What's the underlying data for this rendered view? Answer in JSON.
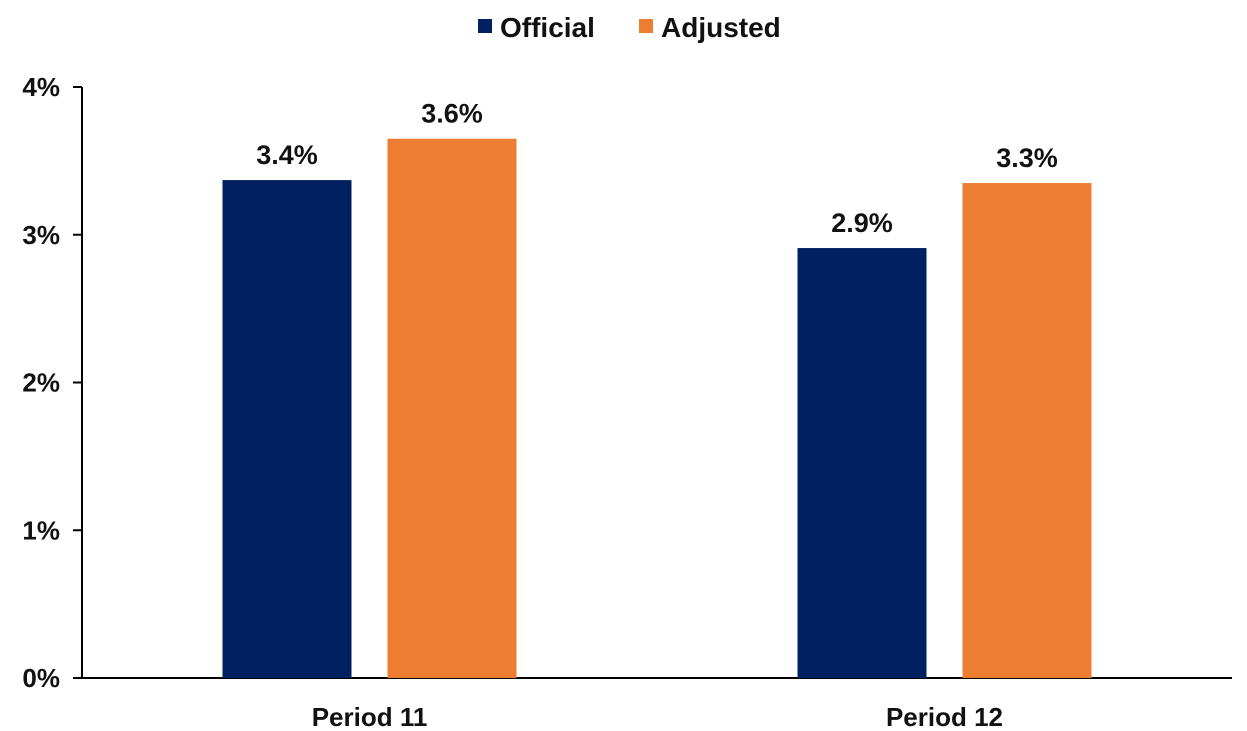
{
  "chart_data": {
    "type": "bar",
    "categories": [
      "Period 11",
      "Period 12"
    ],
    "series": [
      {
        "name": "Official",
        "values": [
          3.37,
          2.91
        ],
        "labels": [
          "3.4%",
          "2.9%"
        ],
        "color": "#002060"
      },
      {
        "name": "Adjusted",
        "values": [
          3.65,
          3.35
        ],
        "labels": [
          "3.6%",
          "3.3%"
        ],
        "color": "#ED7D31"
      }
    ],
    "ylim": [
      0,
      4
    ],
    "yticks": [
      0,
      1,
      2,
      3,
      4
    ],
    "ytick_labels": [
      "0%",
      "1%",
      "2%",
      "3%",
      "4%"
    ],
    "grid": false,
    "legend": "top-center"
  }
}
